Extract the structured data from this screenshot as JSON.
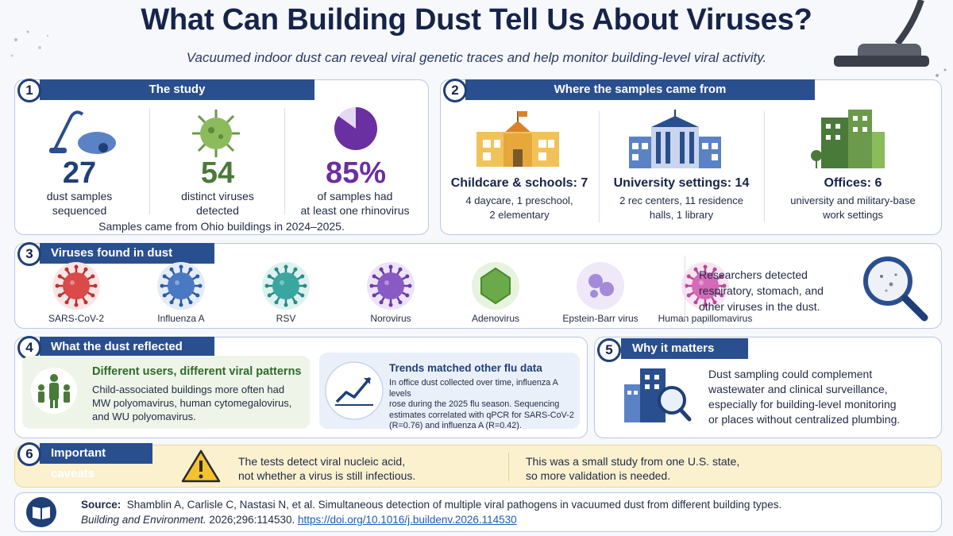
{
  "header": {
    "title": "What Can Building Dust Tell Us About Viruses?",
    "subtitle": "Vacuumed indoor dust can reveal viral genetic traces and help monitor building-level viral activity."
  },
  "study": {
    "number": "1",
    "title": "The study",
    "stats": [
      {
        "value": "27",
        "line1": "dust samples",
        "line2": "sequenced",
        "color": "#1f3f77"
      },
      {
        "value": "54",
        "line1": "distinct viruses",
        "line2": "detected",
        "color": "#4a7a3a"
      },
      {
        "value": "85%",
        "line1": "of samples had",
        "line2": "at least one rhinovirus",
        "color": "#6a2fa0"
      }
    ],
    "footer": "Samples came from Ohio buildings in 2024–2025."
  },
  "sources": {
    "number": "2",
    "title": "Where the samples came from",
    "items": [
      {
        "heading": "Childcare & schools: 7",
        "line1": "4 daycare, 1 preschool,",
        "line2": "2 elementary"
      },
      {
        "heading": "University settings: 14",
        "line1": "2 rec centers, 11 residence",
        "line2": "halls, 1 library"
      },
      {
        "heading": "Offices: 6",
        "line1": "university and military-base",
        "line2": "work settings"
      }
    ]
  },
  "viruses": {
    "number": "3",
    "title": "Viruses found in dust",
    "list": [
      "SARS-CoV-2",
      "Influenza A",
      "RSV",
      "Norovirus",
      "Adenovirus",
      "Epstein-Barr virus",
      "Human papillomavirus"
    ],
    "note_lines": [
      "Researchers detected",
      "respiratory, stomach, and",
      "other viruses in the dust."
    ]
  },
  "reflected": {
    "number": "4",
    "title": "What the dust reflected",
    "users": {
      "heading": "Different users, different viral patterns",
      "lines": [
        "Child-associated buildings more often had",
        "MW polyomavirus, human cytomegalovirus,",
        "and WU polyomavirus."
      ]
    },
    "trends": {
      "heading": "Trends matched other flu data",
      "lines": [
        "In office dust collected over time, influenza A levels",
        "rose during the 2025 flu season. Sequencing",
        "estimates correlated with qPCR for SARS-CoV-2",
        "(R=0.76) and influenza A (R=0.42)."
      ]
    }
  },
  "matters": {
    "number": "5",
    "title": "Why it matters",
    "lines": [
      "Dust sampling could complement",
      "wastewater and clinical surveillance,",
      "especially for building-level monitoring",
      "or places without centralized plumbing."
    ]
  },
  "caveats": {
    "number": "6",
    "title": "Important caveats",
    "c1": [
      "The tests detect viral nucleic acid,",
      "not whether a virus is still infectious."
    ],
    "c2": [
      "This was a small study from one U.S. state,",
      "so more validation is needed."
    ]
  },
  "source": {
    "label": "Source:",
    "text": "Shamblin A, Carlisle C, Nastasi N, et al. Simultaneous detection of multiple viral pathogens in vacuumed dust from different building types.",
    "journal": "Building and Environment.",
    "volume": " 2026;296:114530. ",
    "link": "https://doi.org/10.1016/j.buildenv.2026.114530"
  },
  "colors": {
    "navy": "#16244a",
    "title_bar": "#2a4f8f",
    "green": "#4a7a3a",
    "purple": "#6a2fa0",
    "caveat_bg": "#fbf1cf",
    "warning": "#f2c230"
  },
  "icons": {
    "study": [
      "vacuum-icon",
      "virus-icon",
      "pie-icon"
    ],
    "sources": [
      "school-icon",
      "university-icon",
      "office-icon"
    ],
    "note": "magnifier-icon",
    "users": "family-icon",
    "trends": "trend-up-icon",
    "matters": "building-search-icon",
    "caveat": "warning-icon",
    "source": "book-icon"
  },
  "pie_fraction": 0.85
}
